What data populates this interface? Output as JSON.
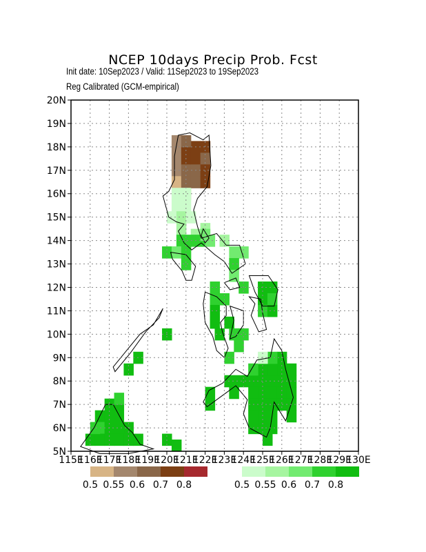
{
  "title": "NCEP 10days Precip Prob. Fcst",
  "init_line": "Init date: 10Sep2023 / Valid: 11Sep2023 to 19Sep2023",
  "method_line": "Reg Calibrated (GCM-empirical)",
  "map": {
    "lon_range": [
      115,
      130
    ],
    "lat_range": [
      5,
      20
    ],
    "grid": true,
    "lat_ticks": [
      "5N",
      "6N",
      "7N",
      "8N",
      "9N",
      "10N",
      "11N",
      "12N",
      "13N",
      "14N",
      "15N",
      "16N",
      "17N",
      "18N",
      "19N",
      "20N"
    ],
    "lon_ticks": [
      "115E",
      "116E",
      "117E",
      "118E",
      "119E",
      "120E",
      "121E",
      "122E",
      "123E",
      "124E",
      "125E",
      "126E",
      "127E",
      "128E",
      "129E",
      "130E"
    ]
  },
  "dry_colorbar": {
    "labels": [
      "0.5",
      "0.55",
      "0.6",
      "0.7",
      "0.8"
    ],
    "colors": [
      "#d7b485",
      "#a4876d",
      "#8a6749",
      "#7c3f14",
      "#a6292e"
    ]
  },
  "wet_colorbar": {
    "labels": [
      "0.5",
      "0.55",
      "0.6",
      "0.7",
      "0.8"
    ],
    "colors": [
      "#cbfccb",
      "#a6f5a0",
      "#72eb70",
      "#2fd12f",
      "#11bd11"
    ]
  }
}
